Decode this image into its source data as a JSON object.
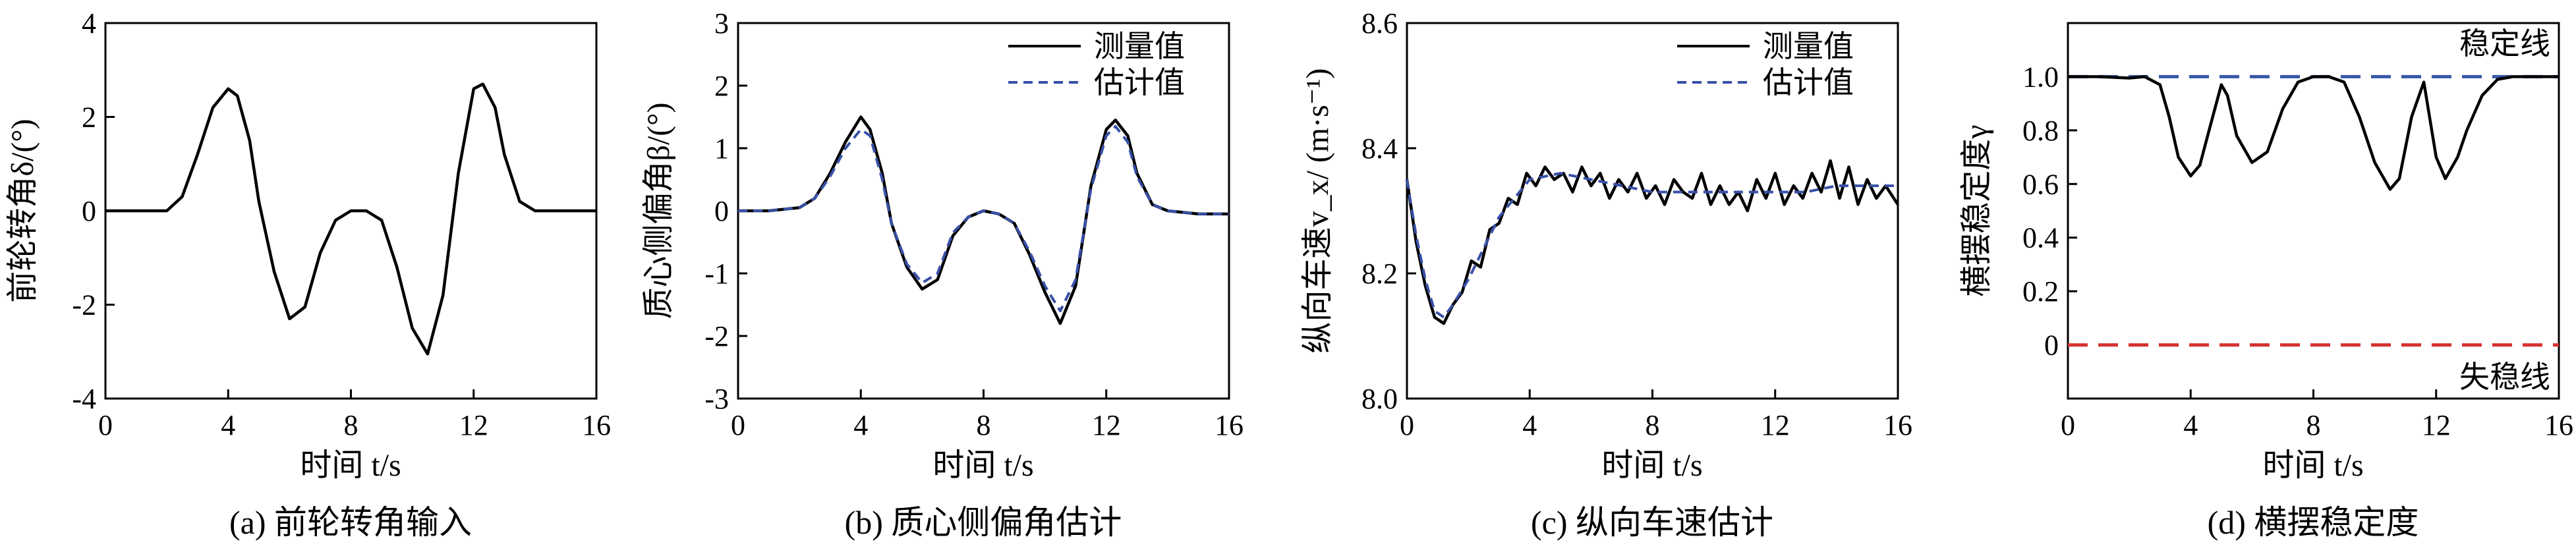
{
  "chart_data": [
    {
      "type": "line",
      "caption": "(a) 前轮转角输入",
      "xlabel": "时间 t/s",
      "ylabel": "前轮转角δ/(°)",
      "xlim": [
        0,
        16
      ],
      "ylim": [
        -4,
        4
      ],
      "xticks": [
        "0",
        "4",
        "8",
        "12",
        "16"
      ],
      "yticks": [
        "-4",
        "-2",
        "0",
        "2",
        "4"
      ],
      "grid": false,
      "legend": null,
      "series": [
        {
          "style": "solid",
          "color": "#000000",
          "x": [
            0,
            1,
            2,
            2.5,
            3,
            3.5,
            4,
            4.3,
            4.7,
            5,
            5.5,
            6,
            6.5,
            7,
            7.5,
            8,
            8.5,
            9,
            9.5,
            10,
            10.5,
            11,
            11.5,
            12,
            12.3,
            12.7,
            13,
            13.5,
            14,
            15,
            16
          ],
          "y": [
            0,
            0,
            0,
            0.3,
            1.2,
            2.2,
            2.6,
            2.45,
            1.5,
            0.2,
            -1.3,
            -2.3,
            -2.05,
            -0.9,
            -0.2,
            0,
            0,
            -0.2,
            -1.2,
            -2.5,
            -3.05,
            -1.8,
            0.8,
            2.6,
            2.7,
            2.2,
            1.2,
            0.2,
            0,
            0,
            0
          ]
        }
      ]
    },
    {
      "type": "line",
      "caption": "(b) 质心侧偏角估计",
      "xlabel": "时间 t/s",
      "ylabel": "质心侧偏角β/(°)",
      "xlim": [
        0,
        16
      ],
      "ylim": [
        -3,
        3
      ],
      "xticks": [
        "0",
        "4",
        "8",
        "12",
        "16"
      ],
      "yticks": [
        "-3",
        "-2",
        "-1",
        "0",
        "1",
        "2",
        "3"
      ],
      "grid": false,
      "legend": {
        "position": "top-right",
        "entries": [
          "测量值",
          "估计值"
        ]
      },
      "series": [
        {
          "name": "测量值",
          "style": "solid",
          "color": "#000000",
          "x": [
            0,
            1,
            2,
            2.5,
            3,
            3.5,
            4,
            4.3,
            4.7,
            5,
            5.5,
            6,
            6.5,
            7,
            7.5,
            8,
            8.5,
            9,
            9.5,
            10,
            10.5,
            11,
            11.5,
            12,
            12.3,
            12.7,
            13,
            13.5,
            14,
            15,
            16
          ],
          "y": [
            0,
            0,
            0.05,
            0.2,
            0.6,
            1.1,
            1.5,
            1.3,
            0.6,
            -0.2,
            -0.9,
            -1.25,
            -1.1,
            -0.4,
            -0.1,
            0,
            -0.05,
            -0.2,
            -0.7,
            -1.3,
            -1.8,
            -1.2,
            0.4,
            1.3,
            1.45,
            1.2,
            0.6,
            0.1,
            0,
            -0.05,
            -0.05
          ]
        },
        {
          "name": "估计值",
          "style": "dashed",
          "color": "#3850A8",
          "x": [
            0,
            1,
            2,
            2.5,
            3,
            3.5,
            4,
            4.3,
            4.7,
            5,
            5.5,
            6,
            6.5,
            7,
            7.5,
            8,
            8.5,
            9,
            9.5,
            10,
            10.5,
            11,
            11.5,
            12,
            12.3,
            12.7,
            13,
            13.5,
            14,
            15,
            16
          ],
          "y": [
            0,
            0,
            0.05,
            0.2,
            0.55,
            1.0,
            1.3,
            1.2,
            0.5,
            -0.2,
            -0.85,
            -1.15,
            -1.0,
            -0.35,
            -0.1,
            0,
            -0.05,
            -0.2,
            -0.65,
            -1.2,
            -1.6,
            -1.1,
            0.35,
            1.2,
            1.35,
            1.1,
            0.55,
            0.1,
            0,
            -0.05,
            -0.05
          ]
        }
      ]
    },
    {
      "type": "line",
      "caption": "(c) 纵向车速估计",
      "xlabel": "时间 t/s",
      "ylabel": "纵向车速v_x/ (m·s⁻¹)",
      "xlim": [
        0,
        16
      ],
      "ylim": [
        8.0,
        8.6
      ],
      "xticks": [
        "0",
        "4",
        "8",
        "12",
        "16"
      ],
      "yticks": [
        "8.0",
        "8.2",
        "8.4",
        "8.6"
      ],
      "grid": false,
      "legend": {
        "position": "top-right",
        "entries": [
          "测量值",
          "估计值"
        ]
      },
      "series": [
        {
          "name": "测量值",
          "style": "solid",
          "color": "#000000",
          "x": [
            0,
            0.3,
            0.6,
            0.9,
            1.2,
            1.5,
            1.8,
            2.1,
            2.4,
            2.7,
            3.0,
            3.3,
            3.6,
            3.9,
            4.2,
            4.5,
            4.8,
            5.1,
            5.4,
            5.7,
            6.0,
            6.3,
            6.6,
            6.9,
            7.2,
            7.5,
            7.8,
            8.1,
            8.4,
            8.7,
            9.0,
            9.3,
            9.6,
            9.9,
            10.2,
            10.5,
            10.8,
            11.1,
            11.4,
            11.7,
            12.0,
            12.3,
            12.6,
            12.9,
            13.2,
            13.5,
            13.8,
            14.1,
            14.4,
            14.7,
            15.0,
            15.3,
            15.6,
            16.0
          ],
          "y": [
            8.35,
            8.25,
            8.18,
            8.13,
            8.12,
            8.15,
            8.17,
            8.22,
            8.21,
            8.27,
            8.28,
            8.32,
            8.31,
            8.36,
            8.34,
            8.37,
            8.35,
            8.36,
            8.33,
            8.37,
            8.34,
            8.36,
            8.32,
            8.35,
            8.33,
            8.36,
            8.32,
            8.34,
            8.31,
            8.35,
            8.33,
            8.32,
            8.36,
            8.31,
            8.34,
            8.31,
            8.33,
            8.3,
            8.35,
            8.32,
            8.36,
            8.31,
            8.34,
            8.32,
            8.36,
            8.33,
            8.38,
            8.32,
            8.37,
            8.31,
            8.35,
            8.32,
            8.34,
            8.31
          ]
        },
        {
          "name": "估计值",
          "style": "dashed",
          "color": "#3850A8",
          "x": [
            0,
            0.3,
            0.6,
            0.9,
            1.2,
            1.5,
            2.0,
            2.5,
            3.0,
            3.5,
            4.0,
            5.0,
            6.0,
            7.0,
            8.0,
            9.0,
            10.0,
            11.0,
            12.0,
            13.0,
            14.0,
            15.0,
            16.0
          ],
          "y": [
            8.35,
            8.26,
            8.19,
            8.14,
            8.13,
            8.15,
            8.19,
            8.24,
            8.29,
            8.32,
            8.35,
            8.36,
            8.35,
            8.34,
            8.33,
            8.33,
            8.33,
            8.33,
            8.33,
            8.33,
            8.34,
            8.34,
            8.34
          ]
        }
      ]
    },
    {
      "type": "line",
      "caption": "(d) 横摆稳定度",
      "xlabel": "时间 t/s",
      "ylabel": "横摆稳定度γ",
      "xlim": [
        0,
        16
      ],
      "ylim": [
        -0.2,
        1.2
      ],
      "xticks": [
        "0",
        "4",
        "8",
        "12",
        "16"
      ],
      "yticks": [
        "0",
        "0.2",
        "0.4",
        "0.6",
        "0.8",
        "1.0"
      ],
      "grid": false,
      "legend": null,
      "reference_lines": [
        {
          "label": "稳定线",
          "y": 1.0,
          "style": "dashed",
          "color": "#3858A8"
        },
        {
          "label": "失稳线",
          "y": 0.0,
          "style": "dashed",
          "color": "#D83030"
        }
      ],
      "series": [
        {
          "style": "solid",
          "color": "#000000",
          "x": [
            0,
            1,
            2,
            2.5,
            3,
            3.3,
            3.6,
            4,
            4.3,
            4.6,
            5.0,
            5.2,
            5.5,
            6,
            6.5,
            7,
            7.5,
            8,
            8.5,
            9,
            9.5,
            10,
            10.5,
            10.8,
            11.2,
            11.6,
            12,
            12.3,
            12.7,
            13,
            13.5,
            14,
            14.5,
            15,
            16
          ],
          "y": [
            1.0,
            1.0,
            0.995,
            1.0,
            0.97,
            0.85,
            0.7,
            0.63,
            0.67,
            0.8,
            0.97,
            0.93,
            0.78,
            0.68,
            0.72,
            0.88,
            0.98,
            1.0,
            1.0,
            0.98,
            0.85,
            0.68,
            0.58,
            0.62,
            0.85,
            0.98,
            0.7,
            0.62,
            0.7,
            0.8,
            0.93,
            0.99,
            1.0,
            1.0,
            1.0
          ]
        }
      ]
    }
  ]
}
